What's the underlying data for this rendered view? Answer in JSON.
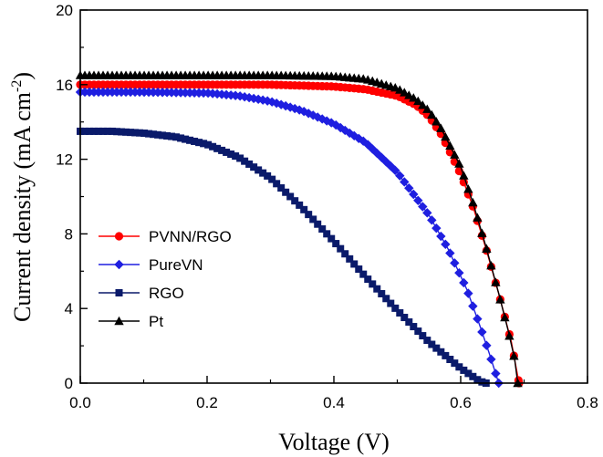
{
  "chart_data": {
    "type": "line",
    "xlabel": "Voltage (V)",
    "ylabel_main": "Current density (mA cm",
    "ylabel_sup": "-2",
    "ylabel_close": ")",
    "xlim": [
      0,
      0.8
    ],
    "ylim": [
      0,
      20
    ],
    "xticks": [
      0.0,
      0.2,
      0.4,
      0.6,
      0.8
    ],
    "xtick_labels": [
      "0.0",
      "0.2",
      "0.4",
      "0.6",
      "0.8"
    ],
    "yticks": [
      0,
      4,
      8,
      12,
      16,
      20
    ],
    "ytick_labels": [
      "0",
      "4",
      "8",
      "12",
      "16",
      "20"
    ],
    "legend_position": "lower-left",
    "series": [
      {
        "name": "PVNN/RGO",
        "color": "#ff0000",
        "marker": "circle",
        "points": [
          [
            0,
            16.0
          ],
          [
            0.1,
            16.0
          ],
          [
            0.2,
            16.0
          ],
          [
            0.3,
            16.0
          ],
          [
            0.35,
            15.95
          ],
          [
            0.4,
            15.9
          ],
          [
            0.45,
            15.75
          ],
          [
            0.5,
            15.4
          ],
          [
            0.53,
            14.9
          ],
          [
            0.55,
            14.3
          ],
          [
            0.57,
            13.3
          ],
          [
            0.6,
            11.2
          ],
          [
            0.62,
            9.4
          ],
          [
            0.64,
            7.2
          ],
          [
            0.66,
            4.8
          ],
          [
            0.68,
            2.2
          ],
          [
            0.692,
            0.0
          ]
        ]
      },
      {
        "name": "PureVN",
        "color": "#1f1fe0",
        "marker": "diamond",
        "points": [
          [
            0,
            15.6
          ],
          [
            0.1,
            15.6
          ],
          [
            0.2,
            15.55
          ],
          [
            0.25,
            15.4
          ],
          [
            0.3,
            15.1
          ],
          [
            0.35,
            14.6
          ],
          [
            0.4,
            13.9
          ],
          [
            0.45,
            12.9
          ],
          [
            0.5,
            11.3
          ],
          [
            0.55,
            9.0
          ],
          [
            0.58,
            7.2
          ],
          [
            0.61,
            5.0
          ],
          [
            0.63,
            3.1
          ],
          [
            0.645,
            1.6
          ],
          [
            0.66,
            0.0
          ]
        ]
      },
      {
        "name": "RGO",
        "color": "#0a1a6a",
        "marker": "square",
        "points": [
          [
            0,
            13.5
          ],
          [
            0.05,
            13.5
          ],
          [
            0.1,
            13.4
          ],
          [
            0.15,
            13.2
          ],
          [
            0.2,
            12.8
          ],
          [
            0.25,
            12.1
          ],
          [
            0.3,
            11.0
          ],
          [
            0.35,
            9.4
          ],
          [
            0.4,
            7.6
          ],
          [
            0.45,
            5.7
          ],
          [
            0.5,
            3.9
          ],
          [
            0.55,
            2.2
          ],
          [
            0.6,
            0.8
          ],
          [
            0.63,
            0.1
          ],
          [
            0.64,
            0.0
          ]
        ]
      },
      {
        "name": "Pt",
        "color": "#000000",
        "marker": "triangle",
        "points": [
          [
            0,
            16.5
          ],
          [
            0.1,
            16.5
          ],
          [
            0.2,
            16.5
          ],
          [
            0.3,
            16.5
          ],
          [
            0.4,
            16.45
          ],
          [
            0.45,
            16.3
          ],
          [
            0.5,
            15.8
          ],
          [
            0.53,
            15.2
          ],
          [
            0.55,
            14.6
          ],
          [
            0.57,
            13.6
          ],
          [
            0.6,
            11.6
          ],
          [
            0.62,
            9.6
          ],
          [
            0.64,
            7.3
          ],
          [
            0.66,
            4.8
          ],
          [
            0.675,
            2.8
          ],
          [
            0.685,
            1.3
          ],
          [
            0.69,
            0.0
          ]
        ]
      }
    ]
  }
}
